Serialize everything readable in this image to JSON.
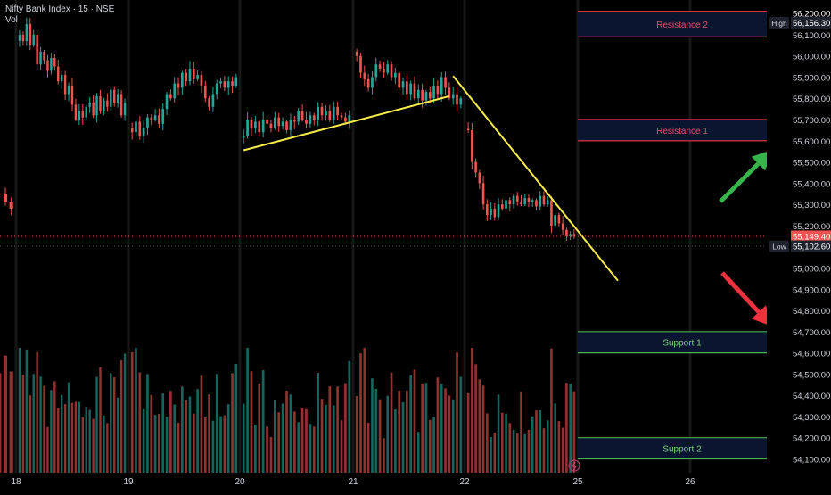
{
  "header": {
    "title": "Nifty Bank Index · 15 · NSE",
    "volume_label": "Vol"
  },
  "colors": {
    "background": "#000000",
    "up": "#26a69a",
    "down": "#ef5350",
    "trendline": "#f5eb4a",
    "resistance": "#f23645",
    "support": "#4caf50",
    "arrow_up": "#36b34a",
    "arrow_down": "#f0323f",
    "axis_text": "#d1d4dc",
    "session_sep": "#2a2a2a"
  },
  "chart_data": {
    "type": "candlestick",
    "symbol": "Nifty Bank Index",
    "interval": "15",
    "exchange": "NSE",
    "x_ticks": [
      "18",
      "19",
      "20",
      "21",
      "22",
      "25",
      "26"
    ],
    "y_ticks": [
      56100,
      56000,
      55900,
      55800,
      55700,
      55600,
      55500,
      55400,
      55300,
      55200,
      55000,
      54900,
      54800,
      54700,
      54600,
      54500,
      54400,
      54300,
      54200,
      54100
    ],
    "y_tick_labels": [
      "56,100.00",
      "56,000.00",
      "55,900.00",
      "55,800.00",
      "55,700.00",
      "55,600.00",
      "55,500.00",
      "55,400.00",
      "55,300.00",
      "55,200.00",
      "55,000.00",
      "54,900.00",
      "54,800.00",
      "54,700.00",
      "54,600.00",
      "54,500.00",
      "54,400.00",
      "54,300.00",
      "54,200.00",
      "54,100.00"
    ],
    "ylim": [
      54060,
      56230
    ],
    "grid": false,
    "price_badges": [
      {
        "label": "56,200.00",
        "value": 56200,
        "tag": "",
        "bg": "#000000"
      },
      {
        "label": "56,156.30",
        "value": 56156.3,
        "tag": "High",
        "bg": "#1e222d"
      },
      {
        "label": "55,149.40",
        "value": 55149.4,
        "tag": "",
        "bg": "#ef5350"
      },
      {
        "label": "55,102.60",
        "value": 55102.6,
        "tag": "Low",
        "bg": "#1e222d"
      }
    ],
    "sessions": [
      {
        "label": "18",
        "closes": [
          55350,
          55310,
          55280
        ]
      },
      {
        "label": "18",
        "closes": [
          56100,
          56070,
          56150,
          56050,
          56100,
          55960,
          56020,
          55980,
          55930,
          55990,
          55950,
          55880,
          55910,
          55820,
          55860,
          55770,
          55700,
          55740,
          55710,
          55760,
          55780,
          55720,
          55810,
          55740,
          55790,
          55760,
          55840,
          55780,
          55820,
          55720,
          55780
        ]
      },
      {
        "label": "19",
        "closes": [
          55640,
          55690,
          55620,
          55660,
          55710,
          55700,
          55720,
          55680,
          55750,
          55820,
          55800,
          55870,
          55850,
          55920,
          55880,
          55940,
          55890,
          55910,
          55860,
          55800,
          55760,
          55820,
          55870,
          55880,
          55850,
          55880,
          55860,
          55900
        ]
      },
      {
        "label": "20",
        "closes": [
          55620,
          55700,
          55660,
          55690,
          55640,
          55700,
          55680,
          55660,
          55710,
          55670,
          55690,
          55650,
          55700,
          55690,
          55740,
          55700,
          55680,
          55720,
          55700,
          55760,
          55720,
          55740,
          55700,
          55760,
          55720,
          55710,
          55690,
          55720
        ]
      },
      {
        "label": "21",
        "closes": [
          56000,
          55920,
          55890,
          55850,
          55900,
          55960,
          55940,
          55920,
          55960,
          55900,
          55920,
          55850,
          55880,
          55820,
          55870,
          55800,
          55840,
          55790,
          55830,
          55800,
          55860,
          55820,
          55900,
          55850,
          55800,
          55820,
          55770,
          55800
        ]
      },
      {
        "label": "22",
        "closes": [
          55650,
          55500,
          55450,
          55400,
          55300,
          55250,
          55280,
          55240,
          55300,
          55280,
          55320,
          55300,
          55340,
          55310,
          55300,
          55330,
          55310,
          55320,
          55290,
          55340,
          55300,
          55320,
          55200,
          55250,
          55210,
          55180,
          55150,
          55160,
          55149
        ]
      }
    ],
    "volume_max": 100,
    "annotations": {
      "zones": [
        {
          "label": "Resistance 2",
          "from": 56090,
          "to": 56210,
          "kind": "resistance"
        },
        {
          "label": "Resistance 1",
          "from": 55600,
          "to": 55700,
          "kind": "resistance"
        },
        {
          "label": "Support 1",
          "from": 54600,
          "to": 54700,
          "kind": "support"
        },
        {
          "label": "Support 2",
          "from": 54100,
          "to": 54200,
          "kind": "support"
        }
      ],
      "trendlines": [
        {
          "name": "rising-trendline",
          "from": {
            "session": 3,
            "bar": 0,
            "price": 55555
          },
          "to": {
            "session": 4,
            "bar": 24,
            "price": 55810
          }
        },
        {
          "name": "falling-trendline",
          "from": {
            "session": 4,
            "bar": 25,
            "price": 55905
          },
          "to": {
            "session": 6,
            "bar": 10,
            "price": 54940
          }
        }
      ]
    }
  }
}
